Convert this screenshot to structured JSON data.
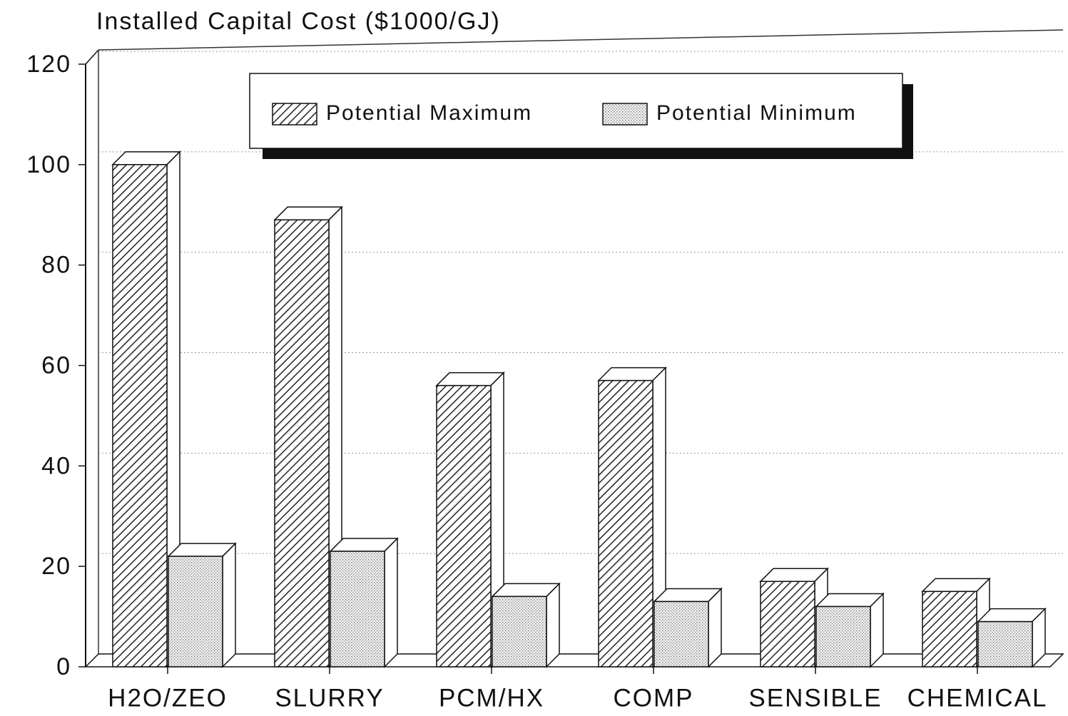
{
  "chart_data": {
    "type": "bar",
    "title": "Installed Capital Cost ($1000/GJ)",
    "categories": [
      "H2O/ZEO",
      "SLURRY",
      "PCM/HX",
      "COMP",
      "SENSIBLE",
      "CHEMICAL"
    ],
    "series": [
      {
        "name": "Potential Maximum",
        "color": "#222222",
        "values": [
          100,
          89,
          56,
          57,
          17,
          15
        ]
      },
      {
        "name": "Potential Minimum",
        "color": "#888888",
        "values": [
          22,
          23,
          14,
          13,
          12,
          9
        ]
      }
    ],
    "ylim": [
      0,
      120
    ],
    "yticks": [
      0,
      20,
      40,
      60,
      80,
      100,
      120
    ],
    "grid": true
  }
}
